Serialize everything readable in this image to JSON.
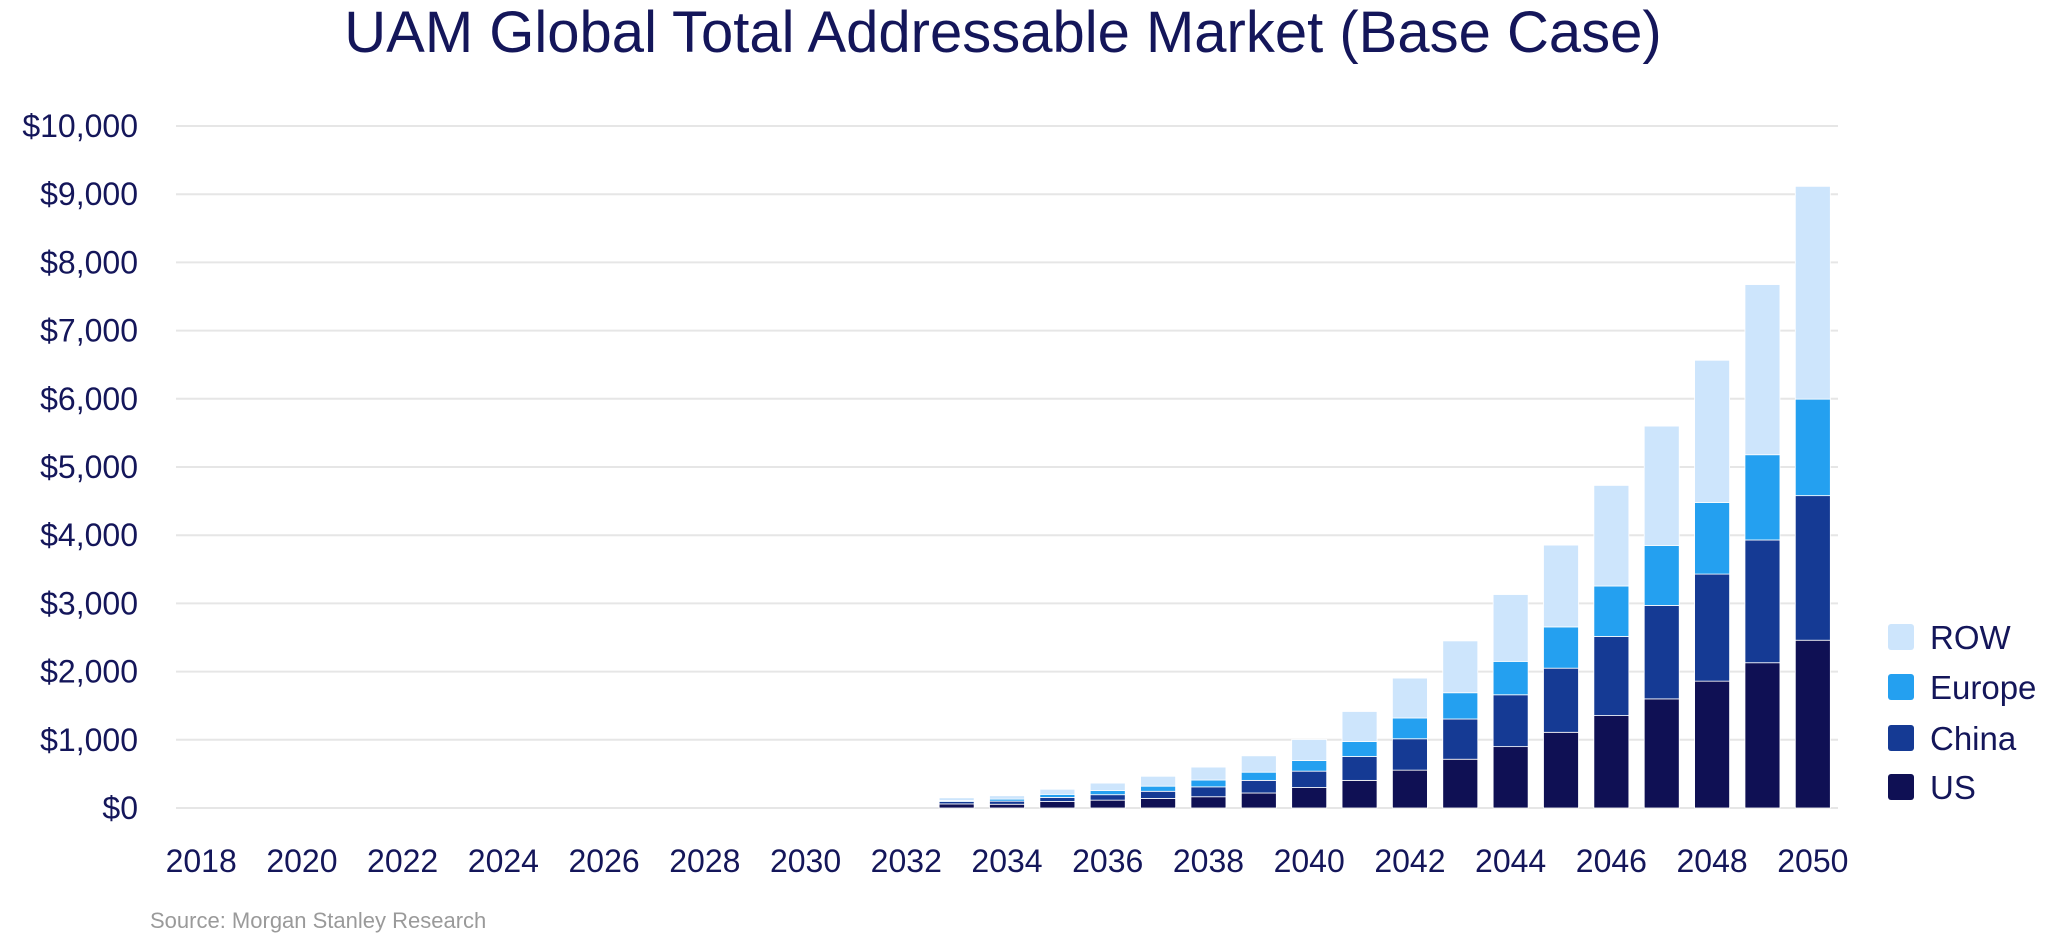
{
  "chart_data": {
    "type": "bar",
    "stacked": true,
    "title": "UAM Global Total Addressable Market (Base Case)",
    "xlabel": "",
    "ylabel": "",
    "ylim": [
      0,
      10000
    ],
    "yticks": [
      "$0",
      "$1,000",
      "$2,000",
      "$3,000",
      "$4,000",
      "$5,000",
      "$6,000",
      "$7,000",
      "$8,000",
      "$9,000",
      "$10,000"
    ],
    "grid": true,
    "legend_position": "right",
    "categories": [
      2018,
      2019,
      2020,
      2021,
      2022,
      2023,
      2024,
      2025,
      2026,
      2027,
      2028,
      2029,
      2030,
      2031,
      2032,
      2033,
      2034,
      2035,
      2036,
      2037,
      2038,
      2039,
      2040,
      2041,
      2042,
      2043,
      2044,
      2045,
      2046,
      2047,
      2048,
      2049,
      2050
    ],
    "xtick_labels": [
      "2018",
      "2020",
      "2022",
      "2024",
      "2026",
      "2028",
      "2030",
      "2032",
      "2034",
      "2036",
      "2038",
      "2040",
      "2042",
      "2044",
      "2046",
      "2048",
      "2050"
    ],
    "series": [
      {
        "name": "US",
        "color": "#0f1054",
        "values": [
          0,
          0,
          0,
          0,
          0,
          0,
          0,
          0,
          0,
          0,
          0,
          0,
          0,
          0,
          0,
          60,
          55,
          95,
          115,
          140,
          165,
          220,
          300,
          405,
          555,
          715,
          900,
          1110,
          1355,
          1600,
          1860,
          2130,
          2460
        ]
      },
      {
        "name": "China",
        "color": "#153a94",
        "values": [
          0,
          0,
          0,
          0,
          0,
          0,
          0,
          0,
          0,
          0,
          0,
          0,
          0,
          0,
          0,
          35,
          45,
          60,
          80,
          105,
          145,
          185,
          240,
          350,
          460,
          590,
          760,
          940,
          1160,
          1370,
          1570,
          1800,
          2120
        ]
      },
      {
        "name": "Europe",
        "color": "#24a0f0",
        "values": [
          0,
          0,
          0,
          0,
          0,
          0,
          0,
          0,
          0,
          0,
          0,
          0,
          0,
          0,
          0,
          15,
          30,
          45,
          60,
          75,
          100,
          120,
          155,
          220,
          305,
          385,
          490,
          605,
          740,
          880,
          1050,
          1250,
          1415
        ]
      },
      {
        "name": "ROW",
        "color": "#cde5fc",
        "values": [
          0,
          0,
          0,
          0,
          0,
          0,
          0,
          0,
          0,
          0,
          0,
          0,
          0,
          0,
          0,
          40,
          50,
          75,
          110,
          145,
          190,
          240,
          310,
          440,
          585,
          760,
          980,
          1200,
          1475,
          1750,
          2085,
          2495,
          3120
        ]
      }
    ],
    "source": "Source: Morgan Stanley Research"
  }
}
